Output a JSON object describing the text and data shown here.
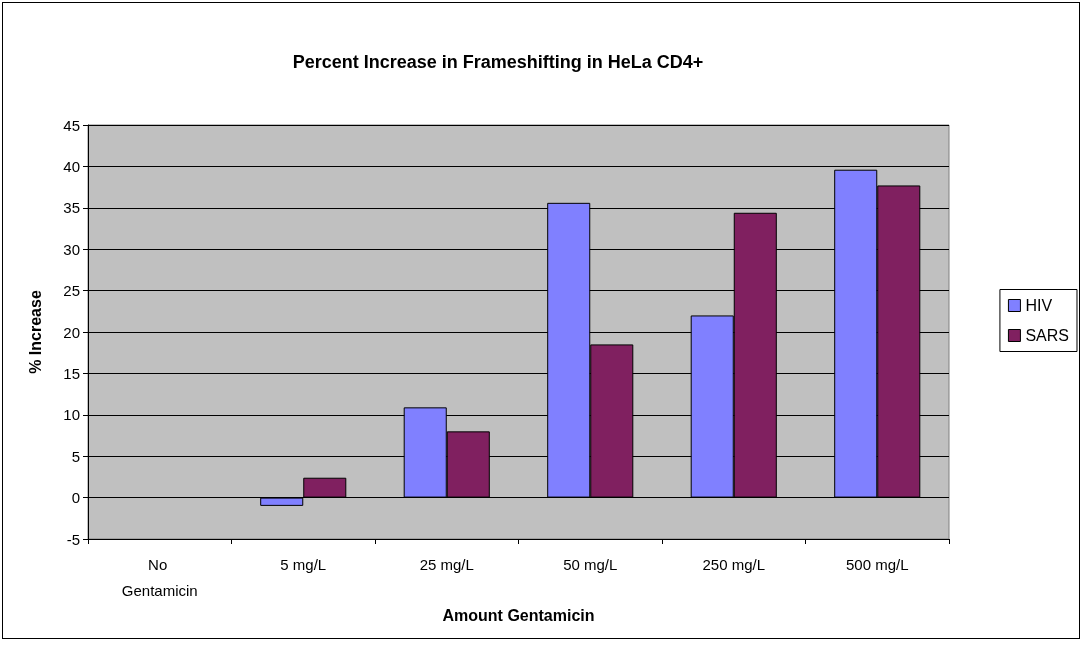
{
  "chart_data": {
    "type": "bar",
    "title": "Percent Increase in Frameshifting in HeLa CD4+",
    "xlabel": "Amount Gentamicin",
    "ylabel": "% Increase",
    "categories": [
      "No Gentamicin",
      "5 mg/L",
      "25 mg/L",
      "50 mg/L",
      "250 mg/L",
      "500 mg/L"
    ],
    "series": [
      {
        "name": "HIV",
        "color": "#8080ff",
        "values": [
          0,
          -1.0,
          10.9,
          35.6,
          22.0,
          39.6
        ]
      },
      {
        "name": "SARS",
        "color": "#802060",
        "values": [
          0,
          2.4,
          8.0,
          18.5,
          34.4,
          37.7
        ]
      }
    ],
    "ylim": [
      -5,
      45
    ],
    "yticks": [
      -5,
      0,
      5,
      10,
      15,
      20,
      25,
      30,
      35,
      40,
      45
    ],
    "grid": "y",
    "legend": "right"
  }
}
